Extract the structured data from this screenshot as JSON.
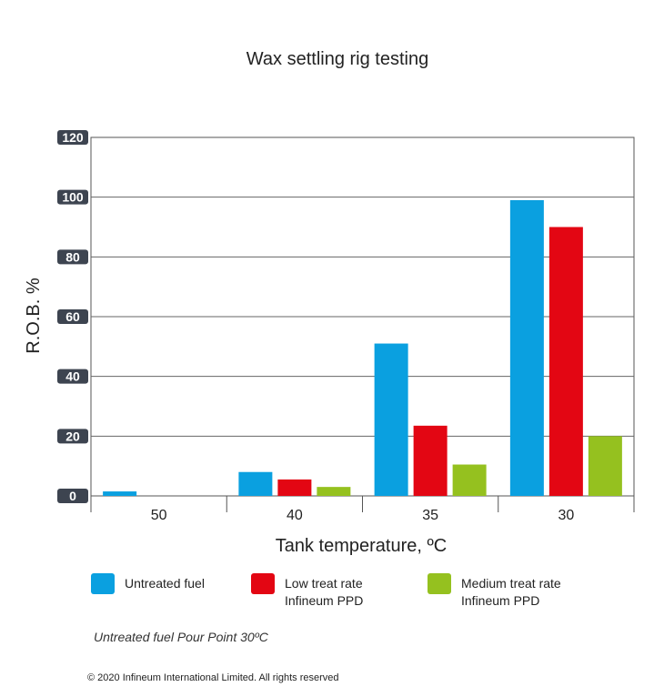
{
  "chart_data": {
    "type": "bar",
    "title": "Wax settling rig testing",
    "xlabel": "Tank temperature, ºC",
    "ylabel": "R.O.B. %",
    "categories": [
      "50",
      "40",
      "35",
      "30"
    ],
    "ylim": [
      0,
      120
    ],
    "yticks": [
      "0",
      "20",
      "40",
      "60",
      "80",
      "100",
      "120"
    ],
    "grid": true,
    "legend_position": "bottom",
    "series": [
      {
        "name": "Untreated fuel",
        "values": [
          1.5,
          8,
          51,
          99
        ],
        "color": "#0aa0e0"
      },
      {
        "name": "Low treat rate\nInfineum PPD",
        "values": [
          0,
          5.5,
          23.5,
          90
        ],
        "color": "#e30613"
      },
      {
        "name": "Medium treat rate\nInfineum PPD",
        "values": [
          0,
          3,
          10.5,
          20
        ],
        "color": "#95c11f"
      }
    ]
  },
  "note": "Untreated fuel Pour Point 30ºC",
  "copyright": "© 2020  Infineum International Limited. All rights reserved"
}
